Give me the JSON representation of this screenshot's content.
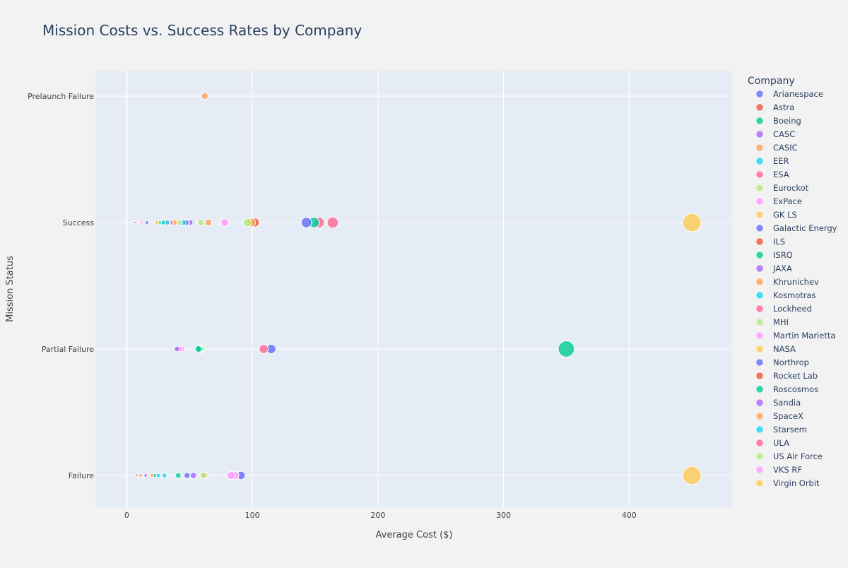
{
  "chart_data": {
    "type": "scatter",
    "title": "Mission Costs vs. Success Rates by Company",
    "xlabel": "Average Cost ($)",
    "ylabel": "Mission Status",
    "xlim": [
      -25,
      482
    ],
    "x_ticks": [
      0,
      100,
      200,
      300,
      400
    ],
    "y_categories": [
      "Failure",
      "Partial Failure",
      "Success",
      "Prelaunch Failure"
    ],
    "grid": true,
    "legend": {
      "title": "Company",
      "placement": "right"
    },
    "size_meaning": "marker size scales with average cost",
    "series": [
      {
        "name": "Arianespace",
        "color": "#636efa",
        "points": [
          {
            "x": 143,
            "y": "Success"
          },
          {
            "x": 51,
            "y": "Success"
          },
          {
            "x": 91,
            "y": "Failure"
          },
          {
            "x": 48,
            "y": "Failure"
          }
        ]
      },
      {
        "name": "Astra",
        "color": "#ef553b",
        "points": [
          {
            "x": 7,
            "y": "Success"
          },
          {
            "x": 8,
            "y": "Failure"
          }
        ]
      },
      {
        "name": "Boeing",
        "color": "#00cc96",
        "points": [
          {
            "x": 29,
            "y": "Success"
          },
          {
            "x": 41,
            "y": "Failure"
          },
          {
            "x": 57,
            "y": "Partial Failure"
          }
        ]
      },
      {
        "name": "CASC",
        "color": "#ab63fa",
        "points": [
          {
            "x": 50,
            "y": "Success"
          },
          {
            "x": 40,
            "y": "Partial Failure"
          },
          {
            "x": 53,
            "y": "Failure"
          }
        ]
      },
      {
        "name": "CASIC",
        "color": "#ffa15a",
        "points": [
          {
            "x": 62,
            "y": "Prelaunch Failure"
          },
          {
            "x": 38,
            "y": "Success"
          },
          {
            "x": 20,
            "y": "Failure"
          }
        ]
      },
      {
        "name": "EER",
        "color": "#19d3f3",
        "points": [
          {
            "x": 26,
            "y": "Success"
          },
          {
            "x": 25,
            "y": "Failure"
          }
        ]
      },
      {
        "name": "ESA",
        "color": "#ff6692",
        "points": [
          {
            "x": 35,
            "y": "Success"
          }
        ]
      },
      {
        "name": "Eurockot",
        "color": "#b6e880",
        "points": [
          {
            "x": 42,
            "y": "Success"
          },
          {
            "x": 61,
            "y": "Failure"
          },
          {
            "x": 60,
            "y": "Partial Failure"
          }
        ]
      },
      {
        "name": "ExPace",
        "color": "#ff97ff",
        "points": [
          {
            "x": 12,
            "y": "Success"
          },
          {
            "x": 42,
            "y": "Partial Failure"
          }
        ]
      },
      {
        "name": "GK LS",
        "color": "#fecb52",
        "points": [
          {
            "x": 24,
            "y": "Success"
          }
        ]
      },
      {
        "name": "Galactic Energy",
        "color": "#636efa",
        "points": [
          {
            "x": 16,
            "y": "Success"
          },
          {
            "x": 115,
            "y": "Partial Failure"
          }
        ]
      },
      {
        "name": "ILS",
        "color": "#ef553b",
        "points": [
          {
            "x": 102,
            "y": "Success"
          }
        ]
      },
      {
        "name": "ISRO",
        "color": "#00cc96",
        "points": [
          {
            "x": 149,
            "y": "Success"
          },
          {
            "x": 22,
            "y": "Failure"
          }
        ]
      },
      {
        "name": "JAXA",
        "color": "#ab63fa",
        "points": [
          {
            "x": 15,
            "y": "Failure"
          },
          {
            "x": 33,
            "y": "Success"
          }
        ]
      },
      {
        "name": "Khrunichev",
        "color": "#ffa15a",
        "points": [
          {
            "x": 65,
            "y": "Success"
          },
          {
            "x": 99,
            "y": "Success"
          }
        ]
      },
      {
        "name": "Kosmotras",
        "color": "#19d3f3",
        "points": [
          {
            "x": 30,
            "y": "Failure"
          },
          {
            "x": 45,
            "y": "Success"
          }
        ]
      },
      {
        "name": "Lockheed",
        "color": "#ff6692",
        "points": [
          {
            "x": 153,
            "y": "Success"
          },
          {
            "x": 109,
            "y": "Partial Failure"
          }
        ]
      },
      {
        "name": "MHI",
        "color": "#b6e880",
        "points": [
          {
            "x": 96,
            "y": "Success"
          },
          {
            "x": 59,
            "y": "Success"
          }
        ]
      },
      {
        "name": "Martin Marietta",
        "color": "#ff97ff",
        "points": [
          {
            "x": 78,
            "y": "Success"
          },
          {
            "x": 83,
            "y": "Failure"
          },
          {
            "x": 86,
            "y": "Failure"
          }
        ]
      },
      {
        "name": "NASA",
        "color": "#fecb52",
        "points": [
          {
            "x": 450,
            "y": "Success"
          },
          {
            "x": 450,
            "y": "Failure"
          }
        ]
      },
      {
        "name": "Northrop",
        "color": "#636efa",
        "points": [
          {
            "x": 47,
            "y": "Success"
          }
        ]
      },
      {
        "name": "Rocket Lab",
        "color": "#ef553b",
        "points": [
          {
            "x": 5,
            "y": "Success"
          },
          {
            "x": 11,
            "y": "Failure"
          }
        ]
      },
      {
        "name": "Roscosmos",
        "color": "#00cc96",
        "points": [
          {
            "x": 350,
            "y": "Partial Failure"
          },
          {
            "x": 58,
            "y": "Partial Failure"
          }
        ]
      },
      {
        "name": "Sandia",
        "color": "#ab63fa",
        "points": [
          {
            "x": 48,
            "y": "Success"
          }
        ]
      },
      {
        "name": "SpaceX",
        "color": "#ffa15a",
        "points": [
          {
            "x": 62,
            "y": "Failure"
          }
        ]
      },
      {
        "name": "Starsem",
        "color": "#19d3f3",
        "points": [
          {
            "x": 32,
            "y": "Success"
          }
        ]
      },
      {
        "name": "ULA",
        "color": "#ff6692",
        "points": [
          {
            "x": 164,
            "y": "Success"
          }
        ]
      },
      {
        "name": "US Air Force",
        "color": "#b6e880",
        "points": [
          {
            "x": 59,
            "y": "Partial Failure"
          }
        ]
      },
      {
        "name": "VKS RF",
        "color": "#ff97ff",
        "points": [
          {
            "x": 44,
            "y": "Partial Failure"
          }
        ]
      },
      {
        "name": "Virgin Orbit",
        "color": "#fecb52",
        "points": [
          {
            "x": 12,
            "y": "Failure"
          }
        ]
      }
    ]
  }
}
